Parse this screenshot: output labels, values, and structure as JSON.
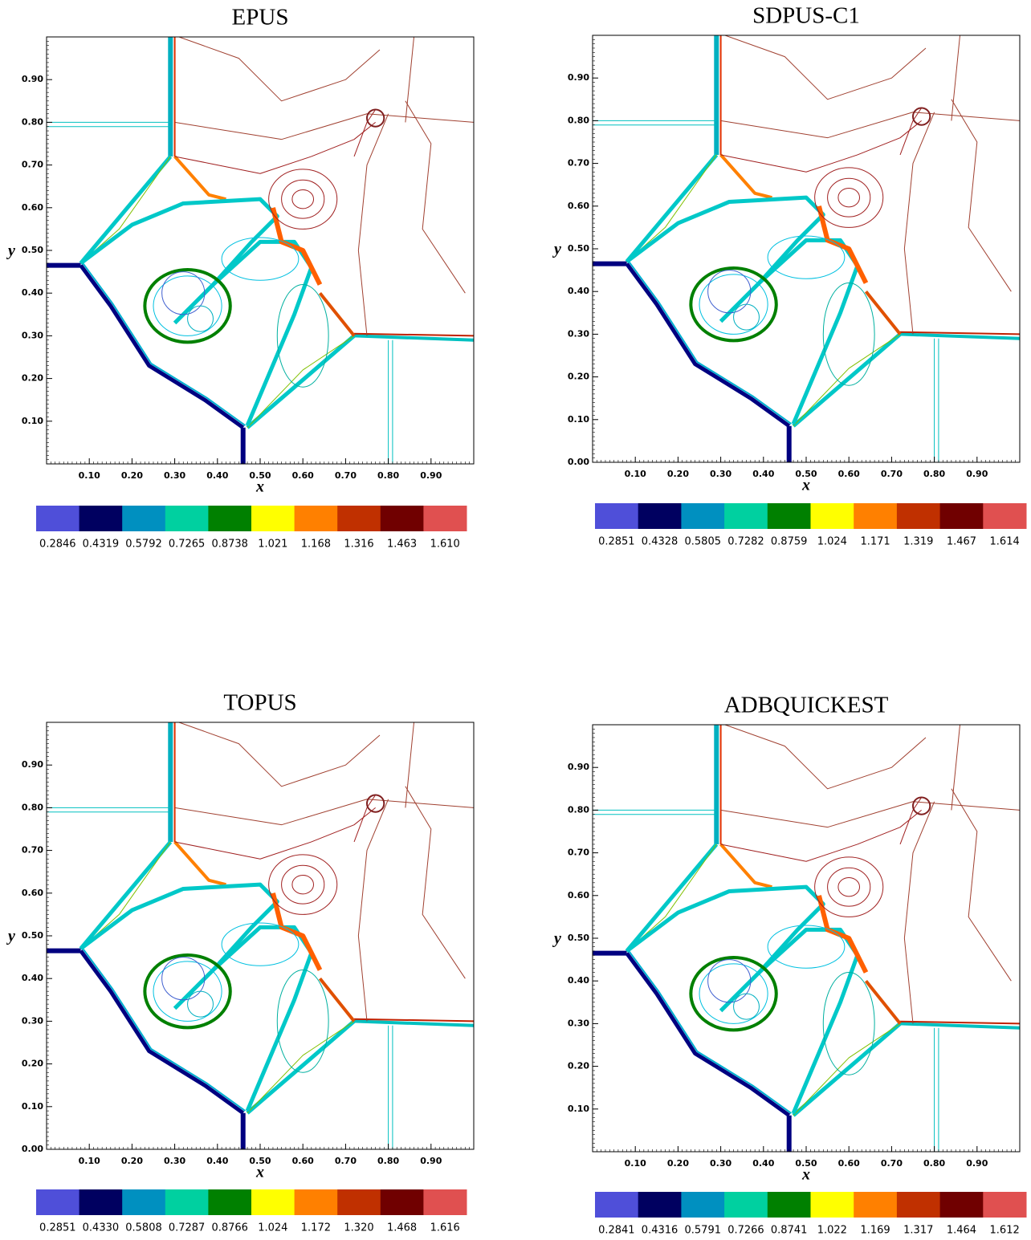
{
  "chart_data": [
    {
      "type": "contour",
      "title": "EPUS",
      "xlabel": "x",
      "ylabel": "y",
      "xlim": [
        0,
        1
      ],
      "ylim": [
        0,
        1
      ],
      "xticks": [
        {
          "value": 0.1,
          "label": "0.10"
        },
        {
          "value": 0.2,
          "label": "0.20"
        },
        {
          "value": 0.3,
          "label": "0.30"
        },
        {
          "value": 0.4,
          "label": "0.40"
        },
        {
          "value": 0.5,
          "label": "0.50"
        },
        {
          "value": 0.6,
          "label": "0.60"
        },
        {
          "value": 0.7,
          "label": "0.70"
        },
        {
          "value": 0.8,
          "label": "0.80"
        },
        {
          "value": 0.9,
          "label": "0.90"
        }
      ],
      "yticks": [
        {
          "value": 0.1,
          "label": "0.10"
        },
        {
          "value": 0.2,
          "label": "0.20"
        },
        {
          "value": 0.3,
          "label": "0.30"
        },
        {
          "value": 0.4,
          "label": "0.40"
        },
        {
          "value": 0.5,
          "label": "0.50"
        },
        {
          "value": 0.6,
          "label": "0.60"
        },
        {
          "value": 0.7,
          "label": "0.70"
        },
        {
          "value": 0.8,
          "label": "0.80"
        },
        {
          "value": 0.9,
          "label": "0.90"
        }
      ],
      "colors": [
        "#4f4fd9",
        "#000060",
        "#0090c0",
        "#00d0a0",
        "#008000",
        "#ffff00",
        "#ff8000",
        "#c03000",
        "#700000",
        "#e05050"
      ],
      "levels": [
        0.2846,
        0.4319,
        0.5792,
        0.7265,
        0.8738,
        1.021,
        1.168,
        1.316,
        1.463,
        {
          "value": 1.61,
          "label": "1.610"
        }
      ]
    },
    {
      "type": "contour",
      "title": "SDPUS-C1",
      "xlabel": "x",
      "ylabel": "y",
      "xlim": [
        0,
        1
      ],
      "ylim": [
        0,
        1
      ],
      "xticks": [
        {
          "value": 0.1,
          "label": "0.10"
        },
        {
          "value": 0.2,
          "label": "0.20"
        },
        {
          "value": 0.3,
          "label": "0.30"
        },
        {
          "value": 0.4,
          "label": "0.40"
        },
        {
          "value": 0.5,
          "label": "0.50"
        },
        {
          "value": 0.6,
          "label": "0.60"
        },
        {
          "value": 0.7,
          "label": "0.70"
        },
        {
          "value": 0.8,
          "label": "0.80"
        },
        {
          "value": 0.9,
          "label": "0.90"
        }
      ],
      "yticks": [
        {
          "value": 0,
          "label": "0.00"
        },
        {
          "value": 0.1,
          "label": "0.10"
        },
        {
          "value": 0.2,
          "label": "0.20"
        },
        {
          "value": 0.3,
          "label": "0.30"
        },
        {
          "value": 0.4,
          "label": "0.40"
        },
        {
          "value": 0.5,
          "label": "0.50"
        },
        {
          "value": 0.6,
          "label": "0.60"
        },
        {
          "value": 0.7,
          "label": "0.70"
        },
        {
          "value": 0.8,
          "label": "0.80"
        },
        {
          "value": 0.9,
          "label": "0.90"
        }
      ],
      "colors": [
        "#4f4fd9",
        "#000060",
        "#0090c0",
        "#00d0a0",
        "#008000",
        "#ffff00",
        "#ff8000",
        "#c03000",
        "#700000",
        "#e05050"
      ],
      "levels": [
        0.2851,
        0.4328,
        0.5805,
        0.7282,
        0.8759,
        1.024,
        1.171,
        1.319,
        1.467,
        1.614
      ]
    },
    {
      "type": "contour",
      "title": "TOPUS",
      "xlabel": "x",
      "ylabel": "y",
      "xlim": [
        0,
        1
      ],
      "ylim": [
        0,
        1
      ],
      "xticks": [
        {
          "value": 0.1,
          "label": "0.10"
        },
        {
          "value": 0.2,
          "label": "0.20"
        },
        {
          "value": 0.3,
          "label": "0.30"
        },
        {
          "value": 0.4,
          "label": "0.40"
        },
        {
          "value": 0.5,
          "label": "0.50"
        },
        {
          "value": 0.6,
          "label": "0.60"
        },
        {
          "value": 0.7,
          "label": "0.70"
        },
        {
          "value": 0.8,
          "label": "0.80"
        },
        {
          "value": 0.9,
          "label": "0.90"
        }
      ],
      "yticks": [
        {
          "value": 0,
          "label": "0.00"
        },
        {
          "value": 0.1,
          "label": "0.10"
        },
        {
          "value": 0.2,
          "label": "0.20"
        },
        {
          "value": 0.3,
          "label": "0.30"
        },
        {
          "value": 0.4,
          "label": "0.40"
        },
        {
          "value": 0.5,
          "label": "0.50"
        },
        {
          "value": 0.6,
          "label": "0.60"
        },
        {
          "value": 0.7,
          "label": "0.70"
        },
        {
          "value": 0.8,
          "label": "0.80"
        },
        {
          "value": 0.9,
          "label": "0.90"
        }
      ],
      "colors": [
        "#4f4fd9",
        "#000060",
        "#0090c0",
        "#00d0a0",
        "#008000",
        "#ffff00",
        "#ff8000",
        "#c03000",
        "#700000",
        "#e05050"
      ],
      "levels": [
        0.2851,
        {
          "value": 0.433,
          "label": "0.4330"
        },
        0.5808,
        0.7287,
        0.8766,
        1.024,
        1.172,
        {
          "value": 1.32,
          "label": "1.320"
        },
        1.468,
        1.616
      ]
    },
    {
      "type": "contour",
      "title": "ADBQUICKEST",
      "xlabel": "x",
      "ylabel": "y",
      "xlim": [
        0,
        1
      ],
      "ylim": [
        0,
        1
      ],
      "xticks": [
        {
          "value": 0.1,
          "label": "0.10"
        },
        {
          "value": 0.2,
          "label": "0.20"
        },
        {
          "value": 0.3,
          "label": "0.30"
        },
        {
          "value": 0.4,
          "label": "0.40"
        },
        {
          "value": 0.5,
          "label": "0.50"
        },
        {
          "value": 0.6,
          "label": "0.60"
        },
        {
          "value": 0.7,
          "label": "0.70"
        },
        {
          "value": 0.8,
          "label": "0.80"
        },
        {
          "value": 0.9,
          "label": "0.90"
        }
      ],
      "yticks": [
        {
          "value": 0.1,
          "label": "0.10"
        },
        {
          "value": 0.2,
          "label": "0.20"
        },
        {
          "value": 0.3,
          "label": "0.30"
        },
        {
          "value": 0.4,
          "label": "0.40"
        },
        {
          "value": 0.5,
          "label": "0.50"
        },
        {
          "value": 0.6,
          "label": "0.60"
        },
        {
          "value": 0.7,
          "label": "0.70"
        },
        {
          "value": 0.8,
          "label": "0.80"
        },
        {
          "value": 0.9,
          "label": "0.90"
        }
      ],
      "colors": [
        "#4f4fd9",
        "#000060",
        "#0090c0",
        "#00d0a0",
        "#008000",
        "#ffff00",
        "#ff8000",
        "#c03000",
        "#700000",
        "#e05050"
      ],
      "levels": [
        0.2841,
        0.4316,
        0.5791,
        0.7266,
        0.8741,
        1.022,
        1.169,
        1.317,
        1.464,
        1.612
      ]
    }
  ]
}
